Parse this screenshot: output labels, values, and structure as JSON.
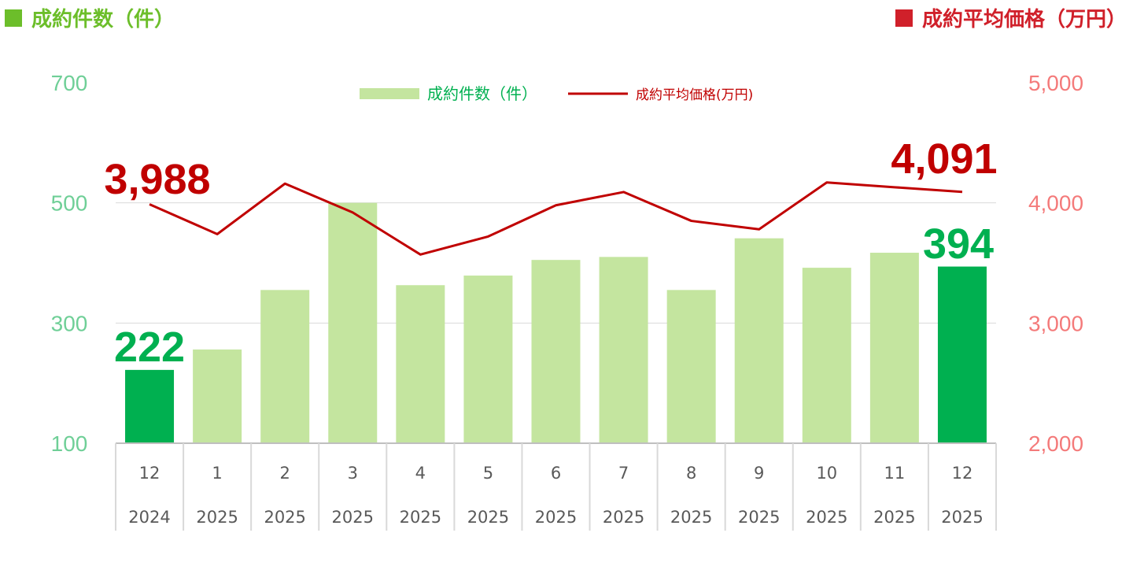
{
  "headers": {
    "left": "成約件数（件）",
    "right": "成約平均価格（万円）"
  },
  "colors": {
    "bar": "#c4e59f",
    "bar_highlight": "#00b050",
    "line": "#c00000",
    "left_axis": "#6fcf97",
    "right_axis": "#f47a7a",
    "header_left": "#6cbe2a",
    "header_right": "#d0202a"
  },
  "chart_data": {
    "type": "bar+line",
    "legend": [
      "成約件数（件）",
      "成約平均価格(万円)"
    ],
    "legend_position": "top-center",
    "months": [
      "12",
      "1",
      "2",
      "3",
      "4",
      "5",
      "6",
      "7",
      "8",
      "9",
      "10",
      "11",
      "12"
    ],
    "years": [
      "2024",
      "2025",
      "2025",
      "2025",
      "2025",
      "2025",
      "2025",
      "2025",
      "2025",
      "2025",
      "2025",
      "2025",
      "2025"
    ],
    "left_axis": {
      "ticks": [
        "100",
        "300",
        "500",
        "700"
      ],
      "ylim": [
        100,
        700
      ]
    },
    "right_axis": {
      "ticks": [
        "2,000",
        "3,000",
        "4,000",
        "5,000"
      ],
      "ylim": [
        2000,
        5000
      ]
    },
    "grid": true,
    "series": [
      {
        "name": "成約件数（件）",
        "type": "bar",
        "axis": "left",
        "values": [
          222,
          256,
          355,
          500,
          363,
          379,
          405,
          410,
          355,
          441,
          392,
          417,
          394
        ],
        "highlight": [
          0,
          12
        ]
      },
      {
        "name": "成約平均価格(万円)",
        "type": "line",
        "axis": "right",
        "values": [
          3988,
          3740,
          4160,
          3920,
          3570,
          3720,
          3980,
          4090,
          3850,
          3780,
          4170,
          4130,
          4091
        ]
      }
    ],
    "callouts": [
      {
        "text": "3,988",
        "series": 1,
        "index": 0
      },
      {
        "text": "222",
        "series": 0,
        "index": 0
      },
      {
        "text": "4,091",
        "series": 1,
        "index": 12
      },
      {
        "text": "394",
        "series": 0,
        "index": 12
      }
    ]
  }
}
